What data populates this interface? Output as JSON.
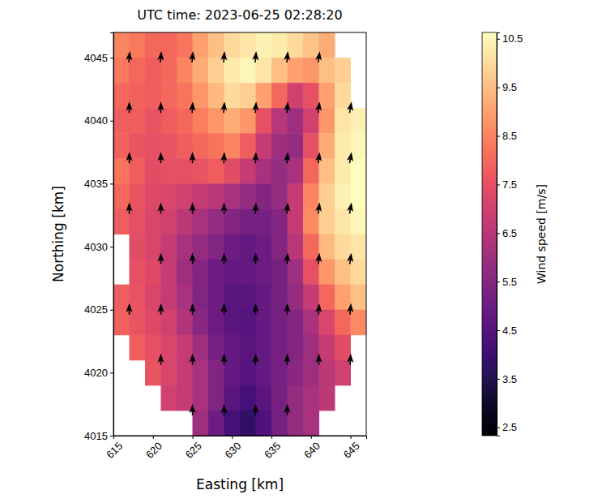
{
  "chart_data": {
    "type": "heatmap",
    "title": "UTC time: 2023-06-25 02:28:20",
    "x_label": "Easting [km]",
    "y_label": "Northing [km]",
    "xlim": [
      615,
      647
    ],
    "ylim": [
      4015,
      4047
    ],
    "xticks": [
      615,
      620,
      625,
      630,
      635,
      640,
      645
    ],
    "yticks": [
      4015,
      4020,
      4025,
      4030,
      4035,
      4040,
      4045
    ],
    "x": [
      616,
      618,
      620,
      622,
      624,
      626,
      628,
      630,
      632,
      634,
      636,
      638,
      640,
      642,
      644,
      646
    ],
    "y": [
      4046,
      4044,
      4042,
      4040,
      4038,
      4036,
      4034,
      4032,
      4030,
      4028,
      4026,
      4024,
      4022,
      4020,
      4018,
      4016
    ],
    "z": [
      [
        8.5,
        8.3,
        8.0,
        8.0,
        8.2,
        9.0,
        9.5,
        10.0,
        10.2,
        10.4,
        10.3,
        10.0,
        9.6,
        9.2,
        null,
        null
      ],
      [
        8.3,
        8.0,
        7.8,
        8.0,
        8.5,
        9.2,
        9.8,
        10.3,
        10.5,
        10.2,
        9.5,
        9.0,
        8.8,
        9.5,
        9.8,
        null
      ],
      [
        8.0,
        7.9,
        7.8,
        8.0,
        8.2,
        8.8,
        9.4,
        10.0,
        9.8,
        9.0,
        8.0,
        7.0,
        7.5,
        9.0,
        10.0,
        null
      ],
      [
        7.8,
        7.8,
        7.6,
        7.8,
        8.0,
        8.4,
        8.8,
        9.2,
        8.8,
        7.5,
        6.5,
        6.0,
        7.0,
        8.8,
        10.2,
        10.4
      ],
      [
        7.9,
        7.6,
        7.5,
        7.6,
        7.8,
        8.0,
        8.2,
        8.5,
        7.8,
        6.8,
        6.0,
        5.8,
        7.5,
        9.2,
        10.3,
        10.5
      ],
      [
        8.2,
        7.8,
        7.4,
        7.5,
        7.5,
        7.6,
        7.8,
        7.4,
        6.8,
        6.2,
        5.8,
        6.2,
        8.0,
        9.5,
        10.3,
        10.6
      ],
      [
        8.0,
        7.6,
        7.3,
        7.2,
        7.0,
        6.8,
        6.5,
        6.2,
        5.8,
        5.5,
        5.8,
        6.8,
        8.5,
        9.8,
        10.4,
        10.6
      ],
      [
        7.8,
        7.5,
        7.2,
        7.0,
        6.6,
        6.2,
        5.8,
        5.5,
        5.2,
        5.2,
        5.5,
        6.8,
        8.6,
        9.8,
        10.2,
        10.5
      ],
      [
        null,
        7.4,
        7.2,
        6.8,
        6.2,
        5.8,
        5.4,
        5.0,
        4.8,
        5.0,
        5.5,
        6.5,
        8.0,
        9.4,
        10.0,
        10.2
      ],
      [
        null,
        7.5,
        7.3,
        6.8,
        6.0,
        5.5,
        5.0,
        4.8,
        4.8,
        5.0,
        5.2,
        6.0,
        7.5,
        8.8,
        9.5,
        10.0
      ],
      [
        7.8,
        7.6,
        7.2,
        6.8,
        6.2,
        5.4,
        5.0,
        4.6,
        4.6,
        4.8,
        5.2,
        5.8,
        6.8,
        8.0,
        9.0,
        9.5
      ],
      [
        7.9,
        7.6,
        7.3,
        7.0,
        6.4,
        5.6,
        5.0,
        4.6,
        4.5,
        4.8,
        5.2,
        5.5,
        6.2,
        7.2,
        8.0,
        8.6
      ],
      [
        null,
        7.8,
        7.5,
        7.2,
        6.8,
        6.0,
        5.2,
        4.8,
        4.6,
        4.8,
        5.2,
        5.5,
        6.0,
        6.8,
        7.4,
        null
      ],
      [
        null,
        null,
        7.6,
        7.2,
        6.8,
        6.2,
        5.4,
        4.8,
        4.5,
        4.8,
        5.2,
        5.6,
        6.0,
        6.6,
        7.0,
        null
      ],
      [
        null,
        null,
        null,
        7.0,
        6.8,
        6.2,
        5.4,
        4.6,
        4.2,
        4.6,
        5.2,
        5.8,
        6.2,
        6.6,
        null,
        null
      ],
      [
        null,
        null,
        null,
        null,
        null,
        6.0,
        5.0,
        4.2,
        3.8,
        4.4,
        5.2,
        5.8,
        6.2,
        null,
        null,
        null
      ]
    ],
    "colorbar": {
      "label": "Wind speed [m/s]",
      "range": [
        2.33,
        10.63
      ],
      "ticks": [
        2.5,
        3.5,
        4.5,
        5.5,
        6.5,
        7.5,
        8.5,
        9.5,
        10.5
      ]
    },
    "arrows": {
      "x": [
        617,
        621,
        625,
        629,
        633,
        637,
        641,
        645
      ],
      "y": [
        4045,
        4041,
        4037,
        4033,
        4029,
        4025,
        4021,
        4017
      ],
      "direction": [
        [
          5,
          5,
          5,
          5,
          5,
          5,
          8,
          null
        ],
        [
          0,
          0,
          3,
          5,
          5,
          5,
          8,
          10
        ],
        [
          0,
          0,
          0,
          3,
          3,
          5,
          8,
          10
        ],
        [
          0,
          0,
          0,
          0,
          3,
          5,
          8,
          10
        ],
        [
          null,
          0,
          0,
          0,
          0,
          3,
          5,
          8
        ],
        [
          0,
          0,
          0,
          0,
          0,
          0,
          3,
          5
        ],
        [
          null,
          0,
          0,
          0,
          0,
          0,
          0,
          3
        ],
        [
          null,
          null,
          0,
          0,
          0,
          0,
          null,
          null
        ]
      ]
    }
  }
}
